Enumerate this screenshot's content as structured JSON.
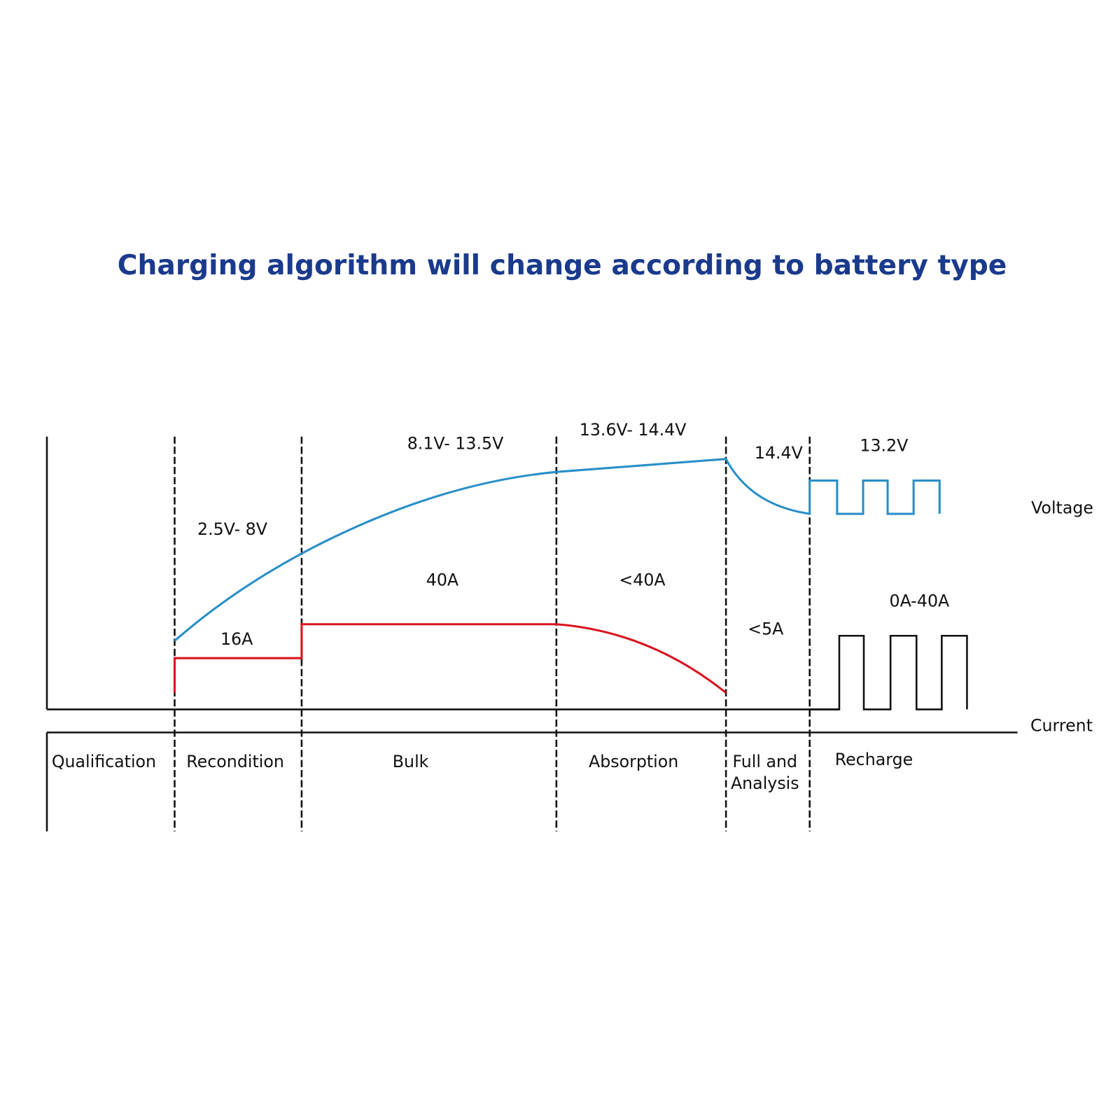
{
  "title": "Charging algorithm will change according to battery type",
  "axis_labels": {
    "voltage": "Voltage",
    "current": "Current"
  },
  "voltage_labels": [
    "2.5V- 8V",
    "8.1V- 13.5V",
    "13.6V-  14.4V",
    "14.4V",
    "13.2V"
  ],
  "current_labels": [
    "16A",
    "40A",
    "<40A",
    "<5A",
    "0A-40A"
  ],
  "stages": [
    {
      "lines": [
        "Qualification"
      ]
    },
    {
      "lines": [
        "Recondition"
      ]
    },
    {
      "lines": [
        "Bulk"
      ]
    },
    {
      "lines": [
        "Absorption"
      ]
    },
    {
      "lines": [
        "Full and",
        "Analysis"
      ]
    },
    {
      "lines": [
        "Recharge"
      ]
    }
  ]
}
